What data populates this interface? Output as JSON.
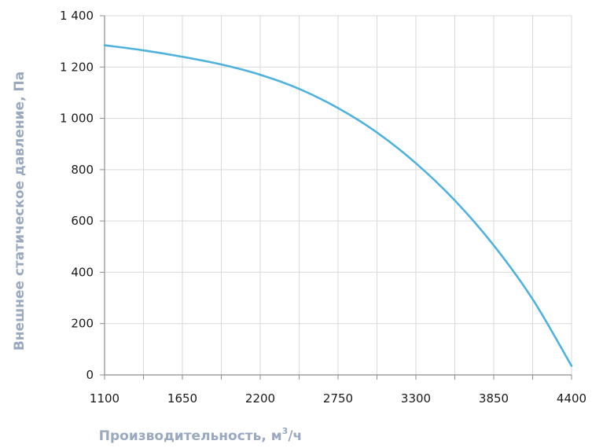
{
  "chart_data": {
    "type": "line",
    "xlabel": "Производительность, м",
    "xlabel_sup": "3",
    "xlabel_suffix": "/ч",
    "ylabel": "Внешнее статическое давление, Па",
    "xlim": [
      1100,
      4400
    ],
    "ylim": [
      0,
      1400
    ],
    "x_ticks": [
      1100,
      1650,
      2200,
      2750,
      3300,
      3850,
      4400
    ],
    "x_tick_labels": [
      "1100",
      "1650",
      "2200",
      "2750",
      "3300",
      "3850",
      "4400"
    ],
    "y_ticks": [
      0,
      200,
      400,
      600,
      800,
      1000,
      1200,
      1400
    ],
    "y_tick_labels": [
      "0",
      "200",
      "400",
      "600",
      "800",
      "1 000",
      "1 200",
      "1 400"
    ],
    "x_grid_step": 275,
    "grid": true,
    "legend": "none",
    "series": [
      {
        "color": "#4fb2dd",
        "x": [
          1100,
          1375,
          1650,
          1925,
          2200,
          2475,
          2750,
          3025,
          3300,
          3575,
          3850,
          4125,
          4400
        ],
        "y": [
          1285,
          1265,
          1240,
          1210,
          1170,
          1115,
          1040,
          945,
          825,
          680,
          505,
          295,
          35
        ]
      }
    ]
  }
}
